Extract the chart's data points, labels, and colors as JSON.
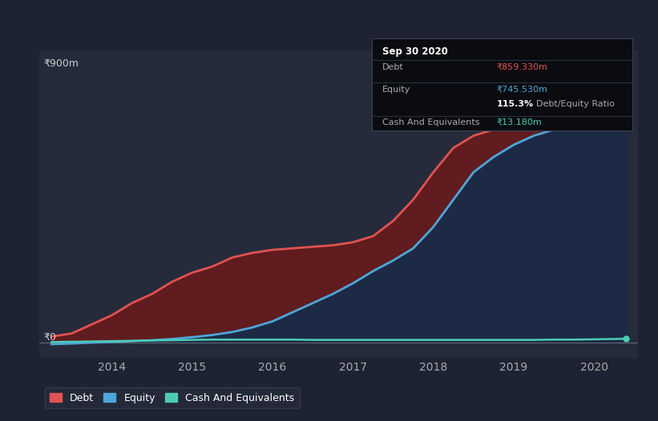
{
  "background_color": "#1e2333",
  "plot_bg_color": "#252b3b",
  "grid_color": "#3a3f52",
  "title_box": {
    "date": "Sep 30 2020",
    "debt_label": "Debt",
    "debt_value": "₹859.330m",
    "equity_label": "Equity",
    "equity_value": "₹745.530m",
    "ratio": "115.3%",
    "ratio_label": "Debt/Equity Ratio",
    "cash_label": "Cash And Equivalents",
    "cash_value": "₹13.180m"
  },
  "ylabel_text": "₹900m",
  "y0_text": "₹0",
  "years": [
    2013.75,
    2014.0,
    2014.25,
    2014.5,
    2014.75,
    2015.0,
    2015.25,
    2015.5,
    2015.75,
    2016.0,
    2016.25,
    2016.5,
    2016.75,
    2017.0,
    2017.25,
    2017.5,
    2017.75,
    2018.0,
    2018.25,
    2018.5,
    2018.75,
    2019.0,
    2019.25,
    2019.5,
    2019.75,
    2020.0,
    2020.25,
    2020.5,
    2020.75,
    2020.9
  ],
  "debt": [
    20,
    30,
    60,
    90,
    130,
    160,
    200,
    230,
    250,
    280,
    295,
    305,
    310,
    315,
    320,
    330,
    350,
    400,
    470,
    560,
    640,
    680,
    700,
    710,
    720,
    730,
    750,
    800,
    840,
    859
  ],
  "equity": [
    -5,
    -3,
    0,
    2,
    5,
    8,
    12,
    18,
    25,
    35,
    50,
    70,
    100,
    130,
    160,
    195,
    235,
    270,
    310,
    380,
    470,
    560,
    610,
    650,
    680,
    700,
    710,
    720,
    735,
    745
  ],
  "cash": [
    2,
    3,
    4,
    5,
    6,
    7,
    8,
    9,
    10,
    10,
    10,
    10,
    10,
    9,
    9,
    9,
    9,
    9,
    9,
    9,
    9,
    9,
    9,
    9,
    9,
    10,
    10,
    11,
    12,
    13
  ],
  "debt_color": "#e05252",
  "equity_color": "#4da6d9",
  "cash_color": "#4dccb4",
  "debt_fill_color": "#6b1a1a",
  "equity_fill_color": "#1a2a4a",
  "xticks": [
    2014.5,
    2015.5,
    2016.5,
    2017.5,
    2018.5,
    2019.5,
    2020.5
  ],
  "xtick_labels": [
    "2014",
    "2015",
    "2016",
    "2017",
    "2018",
    "2019",
    "2020"
  ],
  "ylim": [
    -50,
    960
  ],
  "xlim": [
    2013.6,
    2021.05
  ],
  "legend_labels": [
    "Debt",
    "Equity",
    "Cash And Equivalents"
  ],
  "legend_colors": [
    "#e05252",
    "#4da6d9",
    "#4dccb4"
  ],
  "box_bg": "#0a0c10",
  "box_edge": "#3a3f52",
  "sep_color": "#2a2f42"
}
